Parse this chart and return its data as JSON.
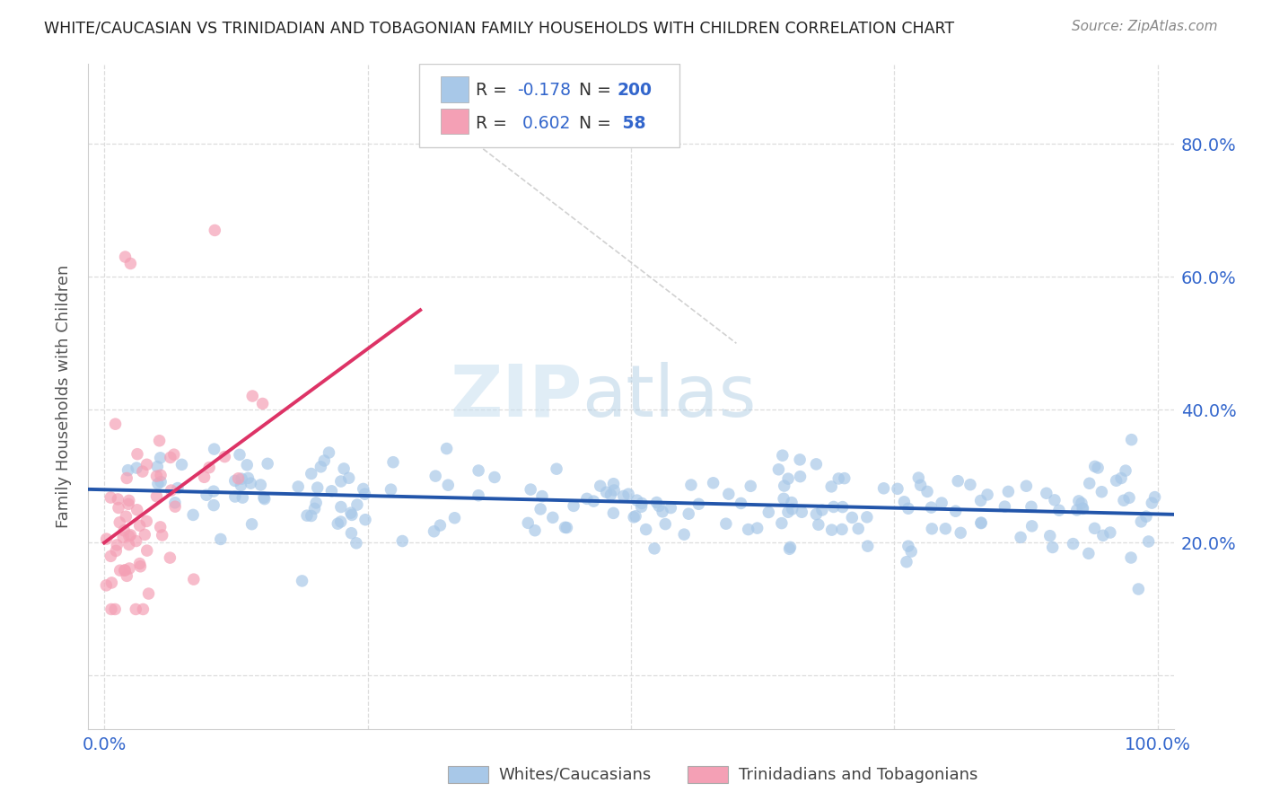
{
  "title": "WHITE/CAUCASIAN VS TRINIDADIAN AND TOBAGONIAN FAMILY HOUSEHOLDS WITH CHILDREN CORRELATION CHART",
  "source": "Source: ZipAtlas.com",
  "ylabel": "Family Households with Children",
  "watermark_zip": "ZIP",
  "watermark_atlas": "atlas",
  "blue_R": -0.178,
  "blue_N": 200,
  "pink_R": 0.602,
  "pink_N": 58,
  "blue_scatter_color": "#a8c8e8",
  "pink_scatter_color": "#f4a0b5",
  "blue_line_color": "#2255aa",
  "pink_line_color": "#dd3366",
  "dash_color": "#cccccc",
  "legend_label_blue": "Whites/Caucasians",
  "legend_label_pink": "Trinidadians and Tobagonians",
  "R_text_color": "#222222",
  "N_value_color": "#3366cc",
  "axis_label_color": "#3366cc",
  "ylabel_color": "#555555",
  "title_color": "#222222",
  "source_color": "#888888",
  "bg_color": "#ffffff",
  "grid_color": "#dddddd",
  "xlim": [
    -0.015,
    1.015
  ],
  "ylim": [
    -0.08,
    0.92
  ],
  "blue_seed": 12,
  "pink_seed": 99
}
